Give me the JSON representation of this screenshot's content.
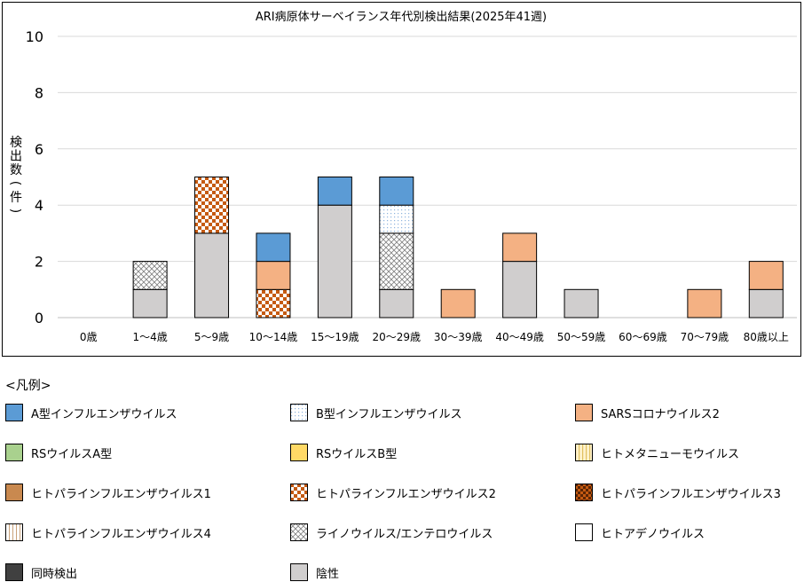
{
  "chart_data": {
    "type": "bar",
    "stacked": true,
    "title": "ARI病原体サーベイランス年代別検出結果(2025年41週)",
    "ylabel": "検出数(件)",
    "ylabel_chars": [
      "検",
      "出",
      "数",
      "(",
      "件",
      ")"
    ],
    "xlabel": "",
    "ylim": [
      0,
      10
    ],
    "yticks": [
      0,
      2,
      4,
      6,
      8,
      10
    ],
    "grid": true,
    "categories": [
      "0歳",
      "1～4歳",
      "5～9歳",
      "10～14歳",
      "15～19歳",
      "20～29歳",
      "30～39歳",
      "40～49歳",
      "50～59歳",
      "60～69歳",
      "70～79歳",
      "80歳以上"
    ],
    "series": [
      {
        "name": "陰性",
        "values": [
          0,
          1,
          3,
          0,
          4,
          1,
          0,
          2,
          1,
          0,
          0,
          1
        ]
      },
      {
        "name": "ヒトパラインフルエンザウイルス2",
        "values": [
          0,
          0,
          2,
          1,
          0,
          0,
          0,
          0,
          0,
          0,
          0,
          0
        ]
      },
      {
        "name": "ライノウイルス/エンテロウイルス",
        "values": [
          0,
          1,
          0,
          0,
          0,
          2,
          0,
          0,
          0,
          0,
          0,
          0
        ]
      },
      {
        "name": "SARSコロナウイルス2",
        "values": [
          0,
          0,
          0,
          1,
          0,
          0,
          1,
          1,
          0,
          0,
          1,
          1
        ]
      },
      {
        "name": "B型インフルエンザウイルス",
        "values": [
          0,
          0,
          0,
          0,
          0,
          1,
          0,
          0,
          0,
          0,
          0,
          0
        ]
      },
      {
        "name": "A型インフルエンザウイルス",
        "values": [
          0,
          0,
          0,
          1,
          1,
          1,
          0,
          0,
          0,
          0,
          0,
          0
        ]
      }
    ]
  },
  "legend": {
    "heading": "<凡例>",
    "items": [
      {
        "label": "A型インフルエンザウイルス",
        "pattern": "solid",
        "color": "#5b9bd5"
      },
      {
        "label": "B型インフルエンザウイルス",
        "pattern": "dots",
        "color": "#dde9f6"
      },
      {
        "label": "SARSコロナウイルス2",
        "pattern": "solid",
        "color": "#f4b183"
      },
      {
        "label": "RSウイルスA型",
        "pattern": "solid",
        "color": "#a9d18e"
      },
      {
        "label": "RSウイルスB型",
        "pattern": "solid",
        "color": "#ffd966"
      },
      {
        "label": "ヒトメタニューモウイルス",
        "pattern": "vstripe",
        "color": "#fff2cc"
      },
      {
        "label": "ヒトパラインフルエンザウイルス1",
        "pattern": "solid",
        "color": "#c9894f"
      },
      {
        "label": "ヒトパラインフルエンザウイルス2",
        "pattern": "checker",
        "color": "#c55a11"
      },
      {
        "label": "ヒトパラインフルエンザウイルス3",
        "pattern": "darkchecker",
        "color": "#843c0c"
      },
      {
        "label": "ヒトパラインフルエンザウイルス4",
        "pattern": "vlines",
        "color": "#e2c4a8"
      },
      {
        "label": "ライノウイルス/エンテロウイルス",
        "pattern": "crosshatch",
        "color": "#9a9a9a"
      },
      {
        "label": "ヒトアデノウイルス",
        "pattern": "solid",
        "color": "#ffffff"
      },
      {
        "label": "同時検出",
        "pattern": "solid",
        "color": "#404040"
      },
      {
        "label": "陰性",
        "pattern": "solid",
        "color": "#d0cece"
      }
    ]
  }
}
